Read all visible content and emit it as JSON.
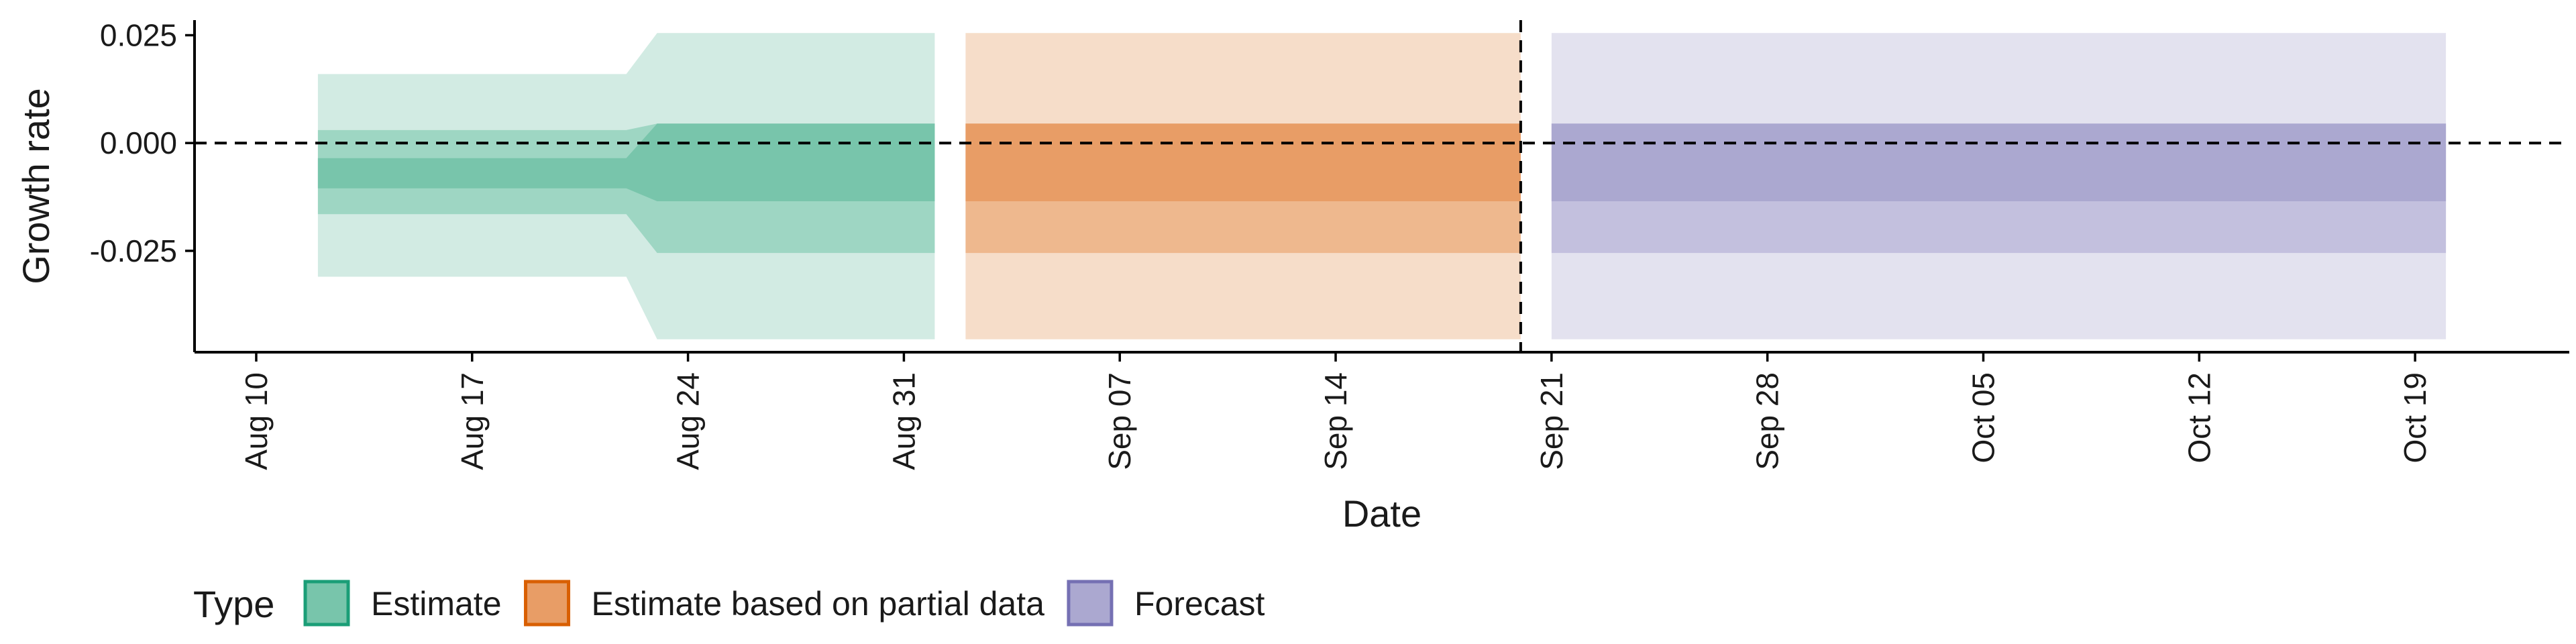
{
  "chart_data": {
    "type": "area",
    "xlabel": "Date",
    "ylabel": "Growth rate",
    "x_type": "date",
    "xlim": [
      "2020-08-08",
      "2020-10-24"
    ],
    "ylim": [
      -0.0485,
      0.0285
    ],
    "x_ticks": [
      {
        "date": "2020-08-10",
        "label": "Aug 10"
      },
      {
        "date": "2020-08-17",
        "label": "Aug 17"
      },
      {
        "date": "2020-08-24",
        "label": "Aug 24"
      },
      {
        "date": "2020-08-31",
        "label": "Aug 31"
      },
      {
        "date": "2020-09-07",
        "label": "Sep 07"
      },
      {
        "date": "2020-09-14",
        "label": "Sep 14"
      },
      {
        "date": "2020-09-21",
        "label": "Sep 21"
      },
      {
        "date": "2020-09-28",
        "label": "Sep 28"
      },
      {
        "date": "2020-10-05",
        "label": "Oct 05"
      },
      {
        "date": "2020-10-12",
        "label": "Oct 12"
      },
      {
        "date": "2020-10-19",
        "label": "Oct 19"
      }
    ],
    "y_ticks": [
      {
        "value": 0.025,
        "label": "0.025"
      },
      {
        "value": 0.0,
        "label": "0.000"
      },
      {
        "value": -0.025,
        "label": "-0.025"
      }
    ],
    "reference_lines": {
      "hline_y": 0.0,
      "vline_date": "2020-09-20"
    },
    "legend": {
      "title": "Type",
      "position": "bottom-left",
      "items": [
        {
          "label": "Estimate",
          "fill": "#78C5AB",
          "border": "#1B9E77"
        },
        {
          "label": "Estimate based on partial data",
          "fill": "#E89D66",
          "border": "#D95F02"
        },
        {
          "label": "Forecast",
          "fill": "#ABA8D0",
          "border": "#7570B3"
        }
      ]
    },
    "series": [
      {
        "name": "Estimate",
        "colors": {
          "outer": "#D2EBE3",
          "mid": "#9ED6C3",
          "inner": "#78C5AB"
        },
        "points": [
          {
            "date": "2020-08-12",
            "bands": [
              [
                -0.031,
                0.016
              ],
              [
                -0.0165,
                0.003
              ],
              [
                -0.0105,
                -0.0035
              ]
            ]
          },
          {
            "date": "2020-08-22",
            "bands": [
              [
                -0.031,
                0.016
              ],
              [
                -0.0165,
                0.003
              ],
              [
                -0.0105,
                -0.0035
              ]
            ]
          },
          {
            "date": "2020-08-23",
            "bands": [
              [
                -0.0455,
                0.0255
              ],
              [
                -0.0255,
                0.0045
              ],
              [
                -0.0135,
                0.0045
              ]
            ]
          },
          {
            "date": "2020-09-01",
            "bands": [
              [
                -0.0455,
                0.0255
              ],
              [
                -0.0255,
                0.0045
              ],
              [
                -0.0135,
                0.0045
              ]
            ]
          }
        ]
      },
      {
        "name": "Estimate based on partial data",
        "colors": {
          "outer": "#F6DDC9",
          "mid": "#EEB88E",
          "inner": "#E89D66"
        },
        "points": [
          {
            "date": "2020-09-02",
            "bands": [
              [
                -0.0455,
                0.0255
              ],
              [
                -0.0255,
                0.0045
              ],
              [
                -0.0135,
                0.0045
              ]
            ]
          },
          {
            "date": "2020-09-20",
            "bands": [
              [
                -0.0455,
                0.0255
              ],
              [
                -0.0255,
                0.0045
              ],
              [
                -0.0135,
                0.0045
              ]
            ]
          }
        ]
      },
      {
        "name": "Forecast",
        "colors": {
          "outer": "#E3E2EF",
          "mid": "#C3C0DE",
          "inner": "#ABA8D0"
        },
        "points": [
          {
            "date": "2020-09-21",
            "bands": [
              [
                -0.0455,
                0.0255
              ],
              [
                -0.0255,
                0.0045
              ],
              [
                -0.0135,
                0.0045
              ]
            ]
          },
          {
            "date": "2020-10-20",
            "bands": [
              [
                -0.0455,
                0.0255
              ],
              [
                -0.0255,
                0.0045
              ],
              [
                -0.0135,
                0.0045
              ]
            ]
          }
        ]
      }
    ]
  }
}
